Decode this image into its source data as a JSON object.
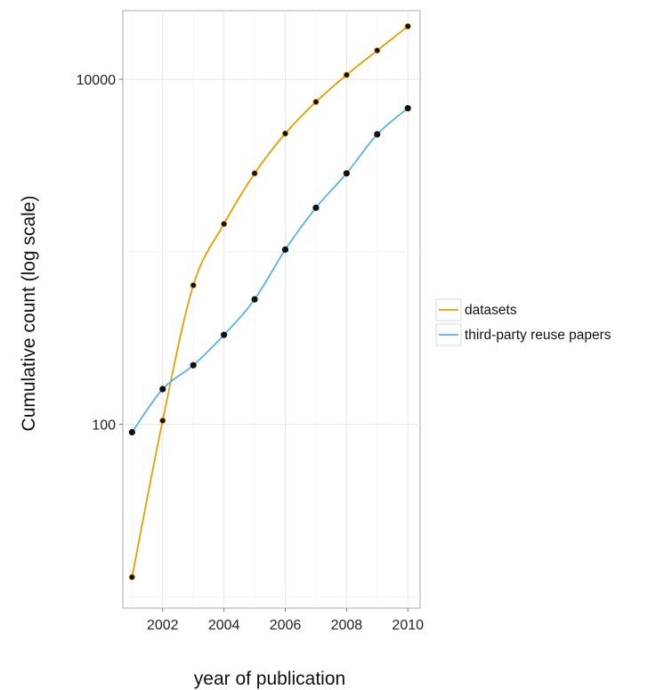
{
  "chart_data": {
    "type": "line",
    "title": "",
    "xlabel": "year of publication",
    "ylabel": "Cumulative count (log scale)",
    "y_scale": "log",
    "xlim": [
      2000.7,
      2010.4
    ],
    "ylim": [
      8.6,
      25000
    ],
    "grid": true,
    "legend_position": "right",
    "x_ticks": [
      2002,
      2004,
      2006,
      2008,
      2010
    ],
    "x_tick_labels": [
      "2002",
      "2004",
      "2006",
      "2008",
      "2010"
    ],
    "y_ticks": [
      100,
      10000
    ],
    "y_tick_labels": [
      "100",
      "10000"
    ],
    "x": [
      2001,
      2002,
      2003,
      2004,
      2005,
      2006,
      2007,
      2008,
      2009,
      2010
    ],
    "series": [
      {
        "name": "datasets",
        "color": "#E69F00",
        "values": [
          13,
          105,
          640,
          1450,
          2850,
          4850,
          7400,
          10600,
          14700,
          20300
        ]
      },
      {
        "name": "third-party reuse papers",
        "color": "#56B4E9",
        "values": [
          90,
          160,
          220,
          330,
          530,
          1030,
          1800,
          2850,
          4800,
          6800
        ]
      }
    ]
  }
}
